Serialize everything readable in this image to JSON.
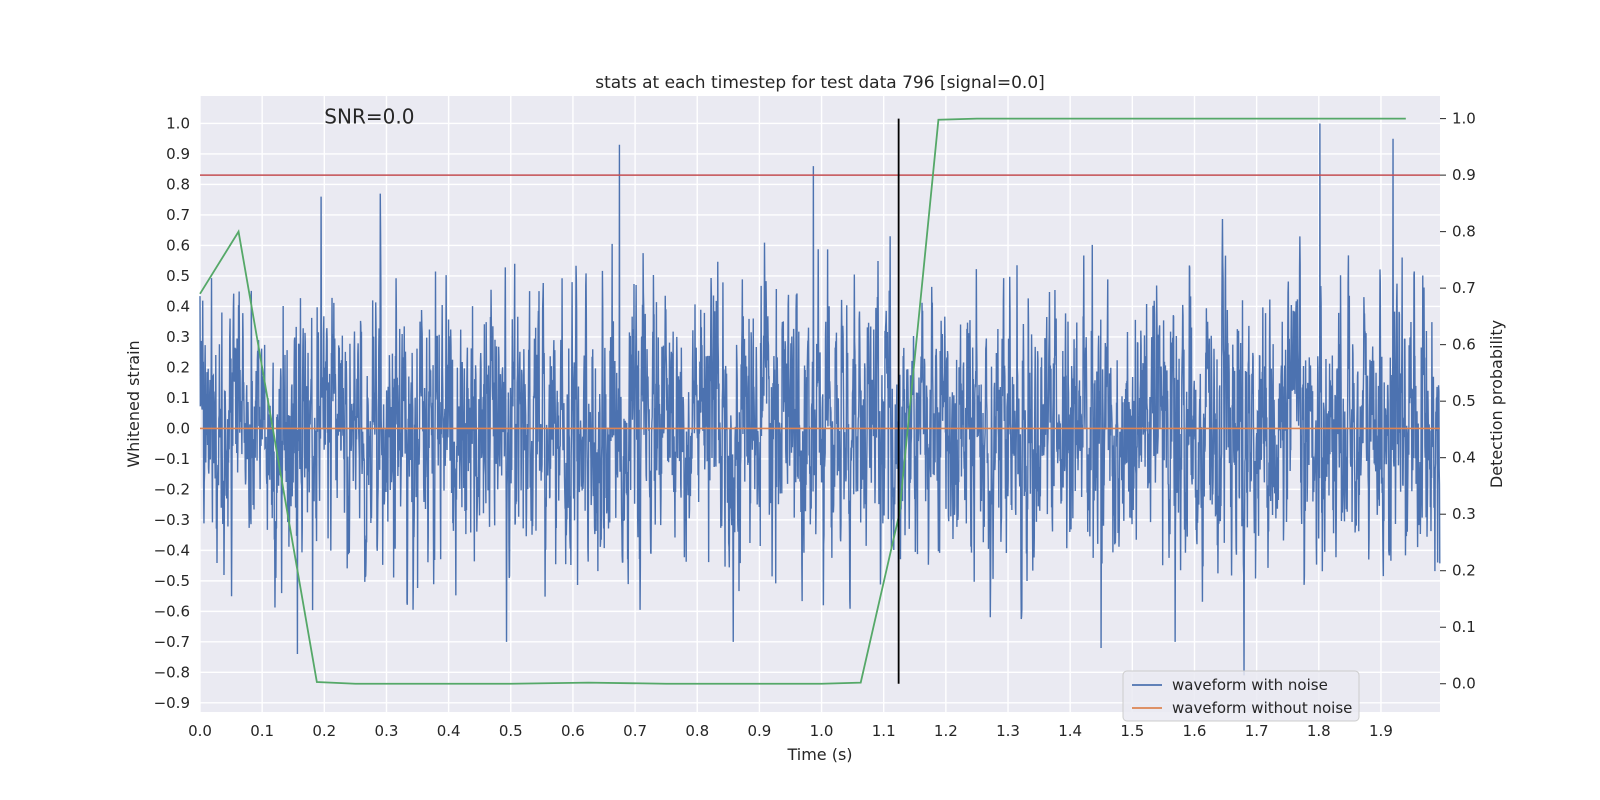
{
  "chart_data": {
    "type": "line",
    "title": "stats at each timestep for test data 796 [signal=0.0]",
    "xlabel": "Time (s)",
    "ylabel": "Whitened strain",
    "y2label": "Detection probability",
    "xlim": [
      0.0,
      1.995
    ],
    "ylim": [
      -0.93,
      1.09
    ],
    "y2lim": [
      -0.05,
      1.04
    ],
    "xticks": [
      0.0,
      0.1,
      0.2,
      0.3,
      0.4,
      0.5,
      0.6,
      0.7,
      0.8,
      0.9,
      1.0,
      1.1,
      1.2,
      1.3,
      1.4,
      1.5,
      1.6,
      1.7,
      1.8,
      1.9
    ],
    "xtick_labels": [
      "0.0",
      "0.1",
      "0.2",
      "0.3",
      "0.4",
      "0.5",
      "0.6",
      "0.7",
      "0.8",
      "0.9",
      "1.0",
      "1.1",
      "1.2",
      "1.3",
      "1.4",
      "1.5",
      "1.6",
      "1.7",
      "1.8",
      "1.9"
    ],
    "yticks": [
      1.0,
      0.9,
      0.8,
      0.7,
      0.6,
      0.5,
      0.4,
      0.3,
      0.2,
      0.1,
      0.0,
      -0.1,
      -0.2,
      -0.3,
      -0.4,
      -0.5,
      -0.6,
      -0.7,
      -0.8,
      -0.9
    ],
    "ytick_labels": [
      "1.0",
      "0.9",
      "0.8",
      "0.7",
      "0.6",
      "0.5",
      "0.4",
      "0.3",
      "0.2",
      "0.1",
      "0.0",
      "−0.1",
      "−0.2",
      "−0.3",
      "−0.4",
      "−0.5",
      "−0.6",
      "−0.7",
      "−0.8",
      "−0.9"
    ],
    "y2ticks": [
      1.0,
      0.9,
      0.8,
      0.7,
      0.6,
      0.5,
      0.4,
      0.3,
      0.2,
      0.1,
      0.0
    ],
    "y2tick_labels": [
      "1.0",
      "0.9",
      "0.8",
      "0.7",
      "0.6",
      "0.5",
      "0.4",
      "0.3",
      "0.2",
      "0.1",
      "0.0"
    ],
    "grid": true,
    "annotation": "SNR=0.0",
    "annotation_pos": {
      "x": 0.2,
      "y": 1.0
    },
    "series": [
      {
        "name": "waveform with noise",
        "color": "#4c72b0",
        "axis": "left",
        "kind": "noise",
        "sample_rate": 2048,
        "duration": 1.995,
        "stats": {
          "seed": 796,
          "std": 0.25,
          "max": 1.0,
          "min": -0.81
        },
        "notable_peaks": [
          {
            "x": 0.675,
            "y": 0.93
          },
          {
            "x": 0.987,
            "y": 0.86
          },
          {
            "x": 1.802,
            "y": 1.0
          },
          {
            "x": 1.92,
            "y": 0.95
          },
          {
            "x": 0.195,
            "y": 0.76
          },
          {
            "x": 0.29,
            "y": 0.77
          },
          {
            "x": 0.157,
            "y": -0.74
          },
          {
            "x": 1.68,
            "y": -0.81
          },
          {
            "x": 1.45,
            "y": -0.72
          }
        ]
      },
      {
        "name": "waveform without noise",
        "color": "#dd8452",
        "axis": "left",
        "x": [
          0.0,
          1.995
        ],
        "y": [
          0.0,
          0.0
        ]
      },
      {
        "name": "detection probability",
        "color": "#55a868",
        "axis": "right",
        "x": [
          0.0,
          0.062,
          0.188,
          0.25,
          0.5,
          0.625,
          0.75,
          1.0,
          1.063,
          1.125,
          1.188,
          1.25,
          1.5,
          1.75,
          1.94
        ],
        "y": [
          0.69,
          0.8,
          0.003,
          0.0,
          0.0,
          0.002,
          0.0,
          0.0,
          0.002,
          0.3,
          0.998,
          1.0,
          1.0,
          1.0,
          1.0
        ]
      }
    ],
    "threshold": {
      "axis": "right",
      "value": 0.9,
      "color": "#c44e52"
    },
    "vline": {
      "x": 1.124,
      "y2_from": 0.0,
      "y2_to": 1.0,
      "color": "#000000"
    },
    "legend": {
      "position": "lower-right",
      "entries": [
        {
          "label": "waveform with noise",
          "color": "#4c72b0"
        },
        {
          "label": "waveform without noise",
          "color": "#dd8452"
        }
      ]
    },
    "colors": {
      "background": "#eaeaf2",
      "grid": "#ffffff"
    }
  }
}
